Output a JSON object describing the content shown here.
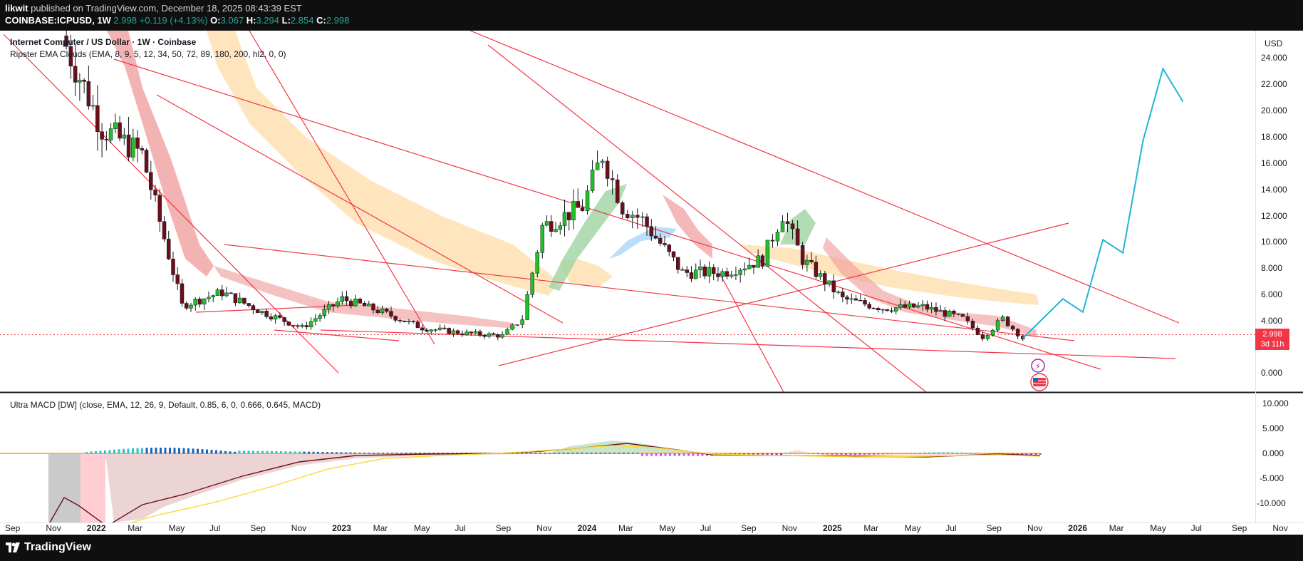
{
  "header": {
    "author": "likwit",
    "published_text": "published on TradingView.com, December 18, 2025 08:43:39 EST",
    "symbol": "COINBASE:ICPUSD",
    "interval": "1W",
    "last": "2.998",
    "change": "+0.119 (+4.13%)",
    "o_label": "O:",
    "open": "3.067",
    "h_label": "H:",
    "high": "3.294",
    "l_label": "L:",
    "low": "2.854",
    "c_label": "C:",
    "close": "2.998"
  },
  "legend": {
    "title": "Internet Computer / US Dollar · 1W · Coinbase",
    "indicator1": "Ripster EMA Clouds (EMA, 8, 9, 5, 12, 34, 50, 72, 89, 180, 200, hl2, 0, 0)",
    "indicator2": "Ultra MACD [DW] (close, EMA, 12, 26, 9, Default, 0.85, 6, 0, 0.666, 0.645, MACD)"
  },
  "price_scale": {
    "currency": "USD",
    "ticks": [
      "24.000",
      "22.000",
      "20.000",
      "18.000",
      "16.000",
      "14.000",
      "12.000",
      "10.000",
      "8.000",
      "6.000",
      "4.000",
      "0.000"
    ],
    "last_price_label": "2.998",
    "countdown": "3d 11h"
  },
  "macd_scale": {
    "ticks": [
      "10.000",
      "5.000",
      "0.000",
      "-5.000",
      "-10.000"
    ]
  },
  "time_axis": [
    "Sep",
    "Nov",
    "2022",
    "Mar",
    "May",
    "Jul",
    "Sep",
    "Nov",
    "2023",
    "Mar",
    "May",
    "Jul",
    "Sep",
    "Nov",
    "2024",
    "Mar",
    "May",
    "Jul",
    "Sep",
    "Nov",
    "2025",
    "Mar",
    "May",
    "Jul",
    "Sep",
    "Nov",
    "2026",
    "Mar",
    "May",
    "Jul",
    "Sep",
    "Nov"
  ],
  "footer": {
    "brand": "TradingView"
  },
  "colors": {
    "up": "#22c02b",
    "down": "#6b0f1a",
    "trendline": "#f23645",
    "projection": "#1fb5d6",
    "accent": "#f23645"
  },
  "chart_data": [
    {
      "type": "candlestick",
      "symbol": "ICPUSD",
      "x_axis": "weekly dates, Sep 2021 – Nov 2026",
      "ylim": [
        0,
        24
      ],
      "closes_approx": [
        {
          "date": "2021-12",
          "close": 26.0
        },
        {
          "date": "2022-02",
          "close": 19.0
        },
        {
          "date": "2022-04",
          "close": 17.0
        },
        {
          "date": "2022-06",
          "close": 5.5
        },
        {
          "date": "2022-08",
          "close": 6.5
        },
        {
          "date": "2022-10",
          "close": 5.0
        },
        {
          "date": "2022-12",
          "close": 3.8
        },
        {
          "date": "2023-02",
          "close": 6.0
        },
        {
          "date": "2023-04",
          "close": 5.0
        },
        {
          "date": "2023-06",
          "close": 3.8
        },
        {
          "date": "2023-08",
          "close": 3.4
        },
        {
          "date": "2023-10",
          "close": 3.2
        },
        {
          "date": "2023-11",
          "close": 4.5
        },
        {
          "date": "2023-12",
          "close": 11.5
        },
        {
          "date": "2024-02",
          "close": 13.0
        },
        {
          "date": "2024-03",
          "close": 17.0
        },
        {
          "date": "2024-04",
          "close": 13.0
        },
        {
          "date": "2024-05",
          "close": 12.0
        },
        {
          "date": "2024-07",
          "close": 8.0
        },
        {
          "date": "2024-09",
          "close": 8.0
        },
        {
          "date": "2024-11",
          "close": 9.0
        },
        {
          "date": "2024-12",
          "close": 12.5
        },
        {
          "date": "2025-01",
          "close": 9.0
        },
        {
          "date": "2025-03",
          "close": 6.0
        },
        {
          "date": "2025-05",
          "close": 5.3
        },
        {
          "date": "2025-07",
          "close": 5.4
        },
        {
          "date": "2025-09",
          "close": 4.5
        },
        {
          "date": "2025-10",
          "close": 3.1
        },
        {
          "date": "2025-11",
          "close": 4.5
        },
        {
          "date": "2025-12",
          "close": 2.998
        }
      ],
      "projection": [
        {
          "date": "2025-12",
          "value": 3.0
        },
        {
          "date": "2026-02",
          "value": 6.0
        },
        {
          "date": "2026-03",
          "value": 5.0
        },
        {
          "date": "2026-04",
          "value": 10.5
        },
        {
          "date": "2026-05",
          "value": 9.5
        },
        {
          "date": "2026-06",
          "value": 18.0
        },
        {
          "date": "2026-07",
          "value": 23.5
        },
        {
          "date": "2026-08",
          "value": 21.0
        }
      ]
    },
    {
      "type": "bar",
      "name": "Ultra MACD [DW]",
      "ylim": [
        -12,
        12
      ],
      "note_values": "histogram near 0 throughout; MACD line dips to about -11 in late 2021 and recovers to ~0 by mid-2023"
    }
  ]
}
